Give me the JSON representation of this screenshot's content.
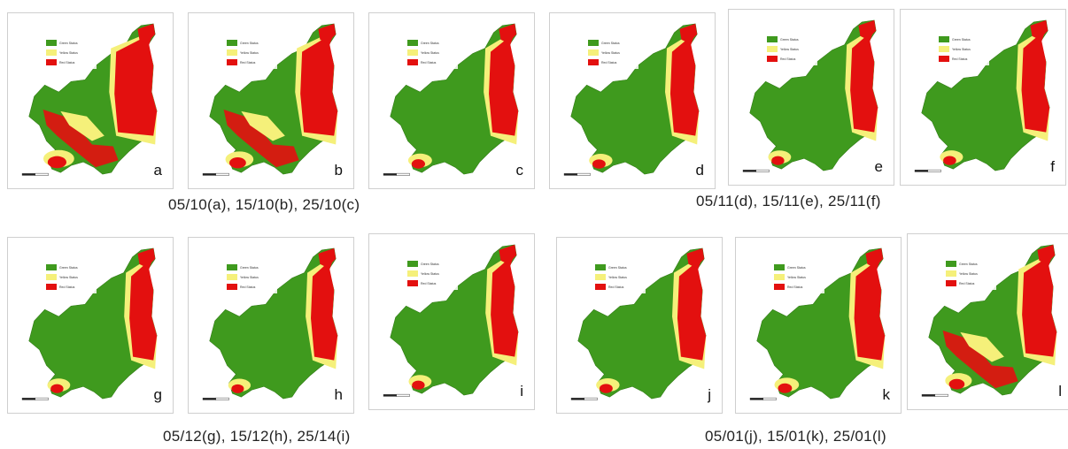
{
  "colors": {
    "green": "#3f9a1e",
    "yellow": "#f5f07a",
    "red": "#e3100f",
    "frame": "#cfcfcf",
    "water": "#ffffff"
  },
  "legend": [
    {
      "color": "#3f9a1e",
      "label": "Green Status"
    },
    {
      "color": "#f5f07a",
      "label": "Yellow Status"
    },
    {
      "color": "#e3100f",
      "label": "Red Status"
    }
  ],
  "panels": [
    {
      "letter": "a",
      "red_level": 0.95
    },
    {
      "letter": "b",
      "red_level": 0.75
    },
    {
      "letter": "c",
      "red_level": 0.45
    },
    {
      "letter": "d",
      "red_level": 0.42
    },
    {
      "letter": "e",
      "red_level": 0.38
    },
    {
      "letter": "f",
      "red_level": 0.4
    },
    {
      "letter": "g",
      "red_level": 0.38
    },
    {
      "letter": "h",
      "red_level": 0.35
    },
    {
      "letter": "i",
      "red_level": 0.38
    },
    {
      "letter": "j",
      "red_level": 0.42
    },
    {
      "letter": "k",
      "red_level": 0.5
    },
    {
      "letter": "l",
      "red_level": 0.65
    }
  ],
  "captions": [
    "05/10(a), 15/10(b), 25/10(c)",
    "05/11(d), 15/11(e), 25/11(f)",
    "05/12(g), 15/12(h), 25/14(i)",
    "05/01(j), 15/01(k), 25/01(l)"
  ]
}
